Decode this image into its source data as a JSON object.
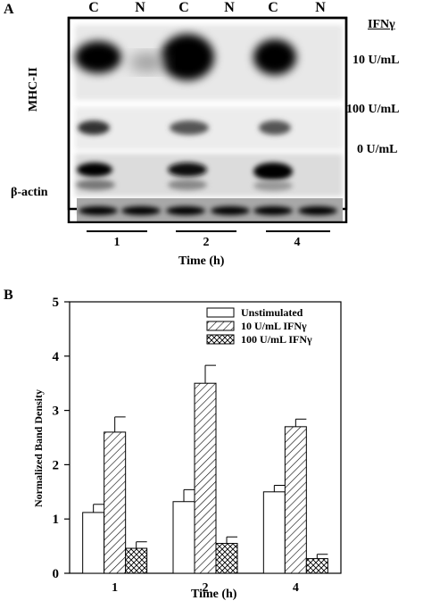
{
  "panel_a": {
    "label": "A",
    "lane_headers": [
      "C",
      "N",
      "C",
      "N",
      "C",
      "N"
    ],
    "ifn_header": "IFNγ",
    "row_labels": [
      "10 U/mL",
      "100 U/mL",
      "0 U/mL"
    ],
    "mhc_label": "MHC-II",
    "actin_label": "β-actin",
    "time_groups": [
      "1",
      "2",
      "4"
    ],
    "time_title": "Time (h)"
  },
  "chart_data": {
    "type": "bar",
    "panel_label": "B",
    "categories": [
      "1",
      "2",
      "4"
    ],
    "xlabel": "Time (h)",
    "ylabel": "Normalized Band Density",
    "ylim": [
      0,
      5
    ],
    "yticks": [
      0,
      1,
      2,
      3,
      4,
      5
    ],
    "legend_position": "top-right",
    "series": [
      {
        "name": "Unstimulated",
        "pattern": "open",
        "values": [
          1.12,
          1.32,
          1.5
        ],
        "errors": [
          0.15,
          0.22,
          0.12
        ]
      },
      {
        "name": "10 U/mL IFNγ",
        "pattern": "diagonal-hatch",
        "values": [
          2.6,
          3.5,
          2.7
        ],
        "errors": [
          0.28,
          0.33,
          0.14
        ]
      },
      {
        "name": "100 U/mL IFNγ",
        "pattern": "cross-hatch",
        "values": [
          0.46,
          0.55,
          0.27
        ],
        "errors": [
          0.12,
          0.12,
          0.08
        ]
      }
    ]
  }
}
